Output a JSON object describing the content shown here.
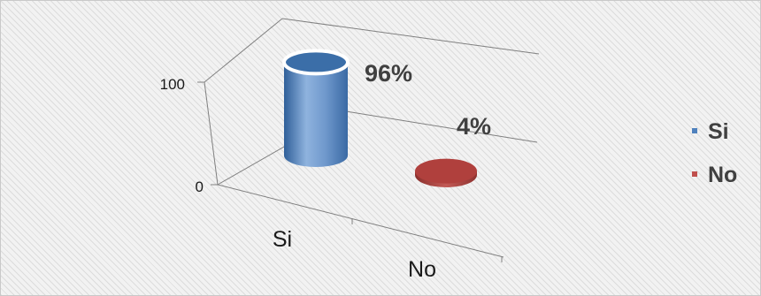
{
  "chart_data": {
    "type": "bar",
    "style": "3d-cylinder",
    "categories": [
      "Si",
      "No"
    ],
    "series": [
      {
        "values": [
          96,
          4
        ]
      }
    ],
    "data_labels": [
      "96%",
      "4%"
    ],
    "y_ticks": [
      "100",
      "0"
    ],
    "ylim": [
      0,
      100
    ],
    "grid": true,
    "legend": {
      "placement": "right",
      "entries": [
        {
          "label": "Si",
          "color": "#4f81bd"
        },
        {
          "label": "No",
          "color": "#c0504d"
        }
      ]
    },
    "colors": {
      "Si": "#4f81bd",
      "No": "#c0504d"
    }
  }
}
